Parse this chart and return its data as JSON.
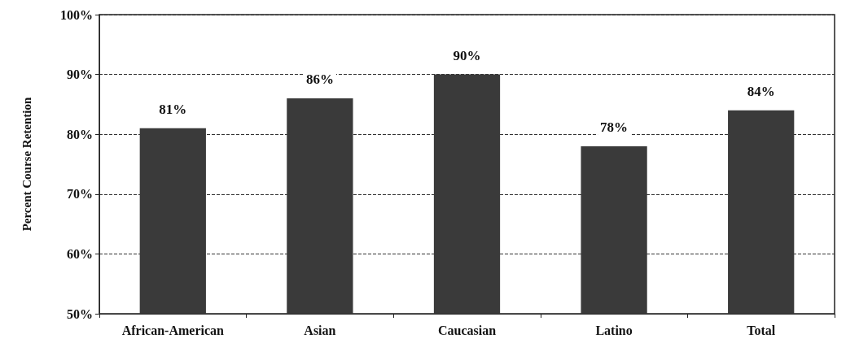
{
  "chart_data": {
    "type": "bar",
    "ylabel": "Percent Course Retention",
    "categories": [
      "African-American",
      "Asian",
      "Caucasian",
      "Latino",
      "Total"
    ],
    "values": [
      81,
      86,
      90,
      78,
      84
    ],
    "color": "#3a3a3a",
    "value_labels": [
      "81%",
      "86%",
      "90%",
      "78%",
      "84%"
    ],
    "ylim": [
      50,
      100
    ],
    "yticks": [
      {
        "value": 50,
        "label": "50%"
      },
      {
        "value": 60,
        "label": "60%"
      },
      {
        "value": 70,
        "label": "70%"
      },
      {
        "value": 80,
        "label": "80%"
      },
      {
        "value": 90,
        "label": "90%"
      },
      {
        "value": 100,
        "label": "100%"
      }
    ],
    "grid": "y"
  }
}
